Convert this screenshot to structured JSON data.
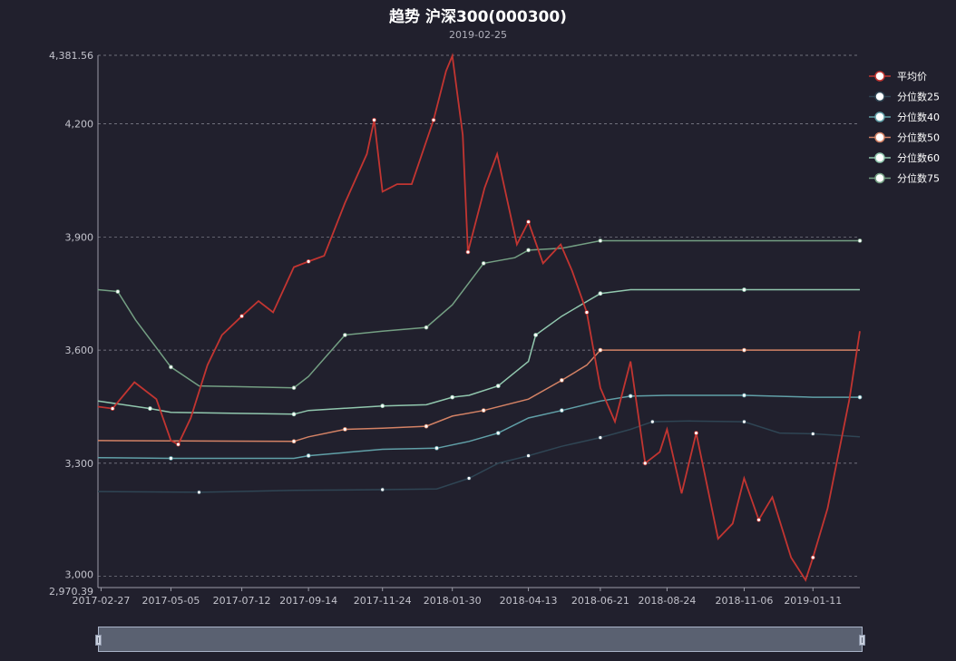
{
  "chart_data": {
    "type": "line",
    "title": "趋势 沪深300(000300)",
    "subtitle": "2019-02-25",
    "x_ticks": [
      "2017-02-27",
      "2017-05-05",
      "2017-07-12",
      "2017-09-14",
      "2017-11-24",
      "2018-01-30",
      "2018-04-13",
      "2018-06-21",
      "2018-08-24",
      "2018-11-06",
      "2019-01-11"
    ],
    "x_range": [
      "2017-02-24",
      "2019-02-25"
    ],
    "ylim": [
      2970.39,
      4381.56
    ],
    "y_ticks": [
      "2,970.39",
      "3,000",
      "3,300",
      "3,600",
      "3,900",
      "4,200",
      "4,381.56"
    ],
    "y_tick_values": [
      2970.39,
      3000,
      3300,
      3600,
      3900,
      4200,
      4381.56
    ],
    "grid": true,
    "legend_position": "right",
    "colors": {
      "平均价": "#c23531",
      "分位数25": "#2f4554",
      "分位数40": "#61a0a8",
      "分位数50": "#d48265",
      "分位数60": "#91c7ae",
      "分位数75": "#749f83"
    },
    "series": [
      {
        "name": "平均价",
        "x": [
          "2017-02-24",
          "2017-03-10",
          "2017-03-31",
          "2017-04-21",
          "2017-05-05",
          "2017-05-12",
          "2017-05-24",
          "2017-06-09",
          "2017-06-23",
          "2017-07-12",
          "2017-07-28",
          "2017-08-11",
          "2017-08-31",
          "2017-09-14",
          "2017-09-29",
          "2017-10-19",
          "2017-11-09",
          "2017-11-16",
          "2017-11-24",
          "2017-12-08",
          "2017-12-22",
          "2018-01-12",
          "2018-01-24",
          "2018-01-30",
          "2018-02-09",
          "2018-02-14",
          "2018-03-02",
          "2018-03-14",
          "2018-04-02",
          "2018-04-13",
          "2018-04-27",
          "2018-05-14",
          "2018-05-25",
          "2018-06-08",
          "2018-06-21",
          "2018-07-05",
          "2018-07-20",
          "2018-08-03",
          "2018-08-17",
          "2018-08-24",
          "2018-09-07",
          "2018-09-21",
          "2018-10-12",
          "2018-10-26",
          "2018-11-06",
          "2018-11-20",
          "2018-12-03",
          "2018-12-21",
          "2019-01-04",
          "2019-01-11",
          "2019-01-25",
          "2019-02-15",
          "2019-02-25"
        ],
        "values": [
          3450,
          3445,
          3515,
          3470,
          3360,
          3350,
          3420,
          3560,
          3640,
          3690,
          3730,
          3700,
          3820,
          3835,
          3850,
          3990,
          4120,
          4210,
          4020,
          4040,
          4040,
          4210,
          4340,
          4380,
          4170,
          3860,
          4030,
          4120,
          3880,
          3940,
          3830,
          3880,
          3810,
          3700,
          3500,
          3410,
          3570,
          3300,
          3330,
          3390,
          3220,
          3380,
          3100,
          3140,
          3260,
          3150,
          3210,
          3050,
          2990,
          3050,
          3180,
          3470,
          3650
        ]
      },
      {
        "name": "分位数25",
        "x": [
          "2017-02-24",
          "2017-06-01",
          "2017-09-01",
          "2017-11-24",
          "2018-01-15",
          "2018-02-15",
          "2018-03-15",
          "2018-04-13",
          "2018-05-15",
          "2018-06-21",
          "2018-07-20",
          "2018-08-10",
          "2018-09-15",
          "2018-11-06",
          "2018-12-10",
          "2019-01-11",
          "2019-02-25"
        ],
        "values": [
          3225,
          3223,
          3228,
          3230,
          3232,
          3260,
          3300,
          3320,
          3345,
          3368,
          3390,
          3410,
          3412,
          3410,
          3380,
          3378,
          3370
        ]
      },
      {
        "name": "分位数40",
        "x": [
          "2017-02-24",
          "2017-05-05",
          "2017-08-31",
          "2017-09-14",
          "2017-11-24",
          "2018-01-15",
          "2018-02-15",
          "2018-03-15",
          "2018-04-13",
          "2018-05-15",
          "2018-06-21",
          "2018-07-20",
          "2018-08-24",
          "2018-11-06",
          "2019-01-11",
          "2019-02-25"
        ],
        "values": [
          3315,
          3313,
          3313,
          3320,
          3337,
          3340,
          3358,
          3380,
          3420,
          3440,
          3465,
          3478,
          3480,
          3480,
          3475,
          3475
        ]
      },
      {
        "name": "分位数50",
        "x": [
          "2017-02-24",
          "2017-08-31",
          "2017-09-14",
          "2017-10-19",
          "2017-11-24",
          "2018-01-05",
          "2018-01-30",
          "2018-03-01",
          "2018-04-13",
          "2018-05-15",
          "2018-06-08",
          "2018-06-21",
          "2018-07-20",
          "2018-11-06",
          "2019-02-25"
        ],
        "values": [
          3360,
          3358,
          3370,
          3390,
          3393,
          3398,
          3425,
          3440,
          3470,
          3520,
          3560,
          3600,
          3600,
          3600,
          3600
        ]
      },
      {
        "name": "分位数60",
        "x": [
          "2017-02-24",
          "2017-04-15",
          "2017-05-05",
          "2017-08-31",
          "2017-09-14",
          "2017-11-24",
          "2018-01-05",
          "2018-01-30",
          "2018-02-15",
          "2018-03-15",
          "2018-04-13",
          "2018-04-20",
          "2018-05-15",
          "2018-06-21",
          "2018-07-20",
          "2018-11-06",
          "2019-02-25"
        ],
        "values": [
          3465,
          3445,
          3435,
          3430,
          3440,
          3452,
          3455,
          3475,
          3480,
          3505,
          3570,
          3640,
          3690,
          3750,
          3760,
          3760,
          3760
        ]
      },
      {
        "name": "分位数75",
        "x": [
          "2017-02-24",
          "2017-03-15",
          "2017-04-01",
          "2017-05-05",
          "2017-06-01",
          "2017-08-31",
          "2017-09-14",
          "2017-10-19",
          "2017-11-24",
          "2018-01-05",
          "2018-01-30",
          "2018-03-01",
          "2018-03-31",
          "2018-04-13",
          "2018-05-15",
          "2018-06-21",
          "2018-11-06",
          "2019-02-25"
        ],
        "values": [
          3760,
          3755,
          3680,
          3555,
          3505,
          3500,
          3530,
          3640,
          3650,
          3660,
          3720,
          3830,
          3845,
          3865,
          3870,
          3890,
          3890,
          3890
        ]
      }
    ]
  }
}
